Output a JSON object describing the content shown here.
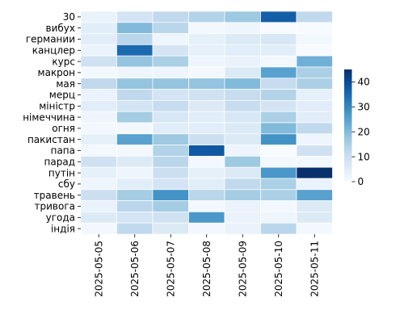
{
  "chart_data": {
    "type": "heatmap",
    "title": "",
    "xlabel": "",
    "ylabel": "",
    "x": [
      "2025-05-05",
      "2025-05-06",
      "2025-05-07",
      "2025-05-08",
      "2025-05-09",
      "2025-05-10",
      "2025-05-11"
    ],
    "y": [
      "30",
      "вибух",
      "германии",
      "канцлер",
      "курс",
      "макрон",
      "мая",
      "мерц",
      "міністр",
      "німеччина",
      "огня",
      "пакистан",
      "папа",
      "парад",
      "путін",
      "сбу",
      "травень",
      "тривога",
      "угода",
      "індія"
    ],
    "values": [
      [
        3,
        8,
        12,
        14,
        17,
        37,
        12
      ],
      [
        5,
        20,
        13,
        1,
        2,
        0,
        0
      ],
      [
        5,
        13,
        2,
        4,
        6,
        7,
        1
      ],
      [
        3,
        35,
        8,
        4,
        5,
        5,
        0
      ],
      [
        9,
        18,
        15,
        2,
        3,
        1,
        22
      ],
      [
        1,
        2,
        2,
        1,
        6,
        25,
        15
      ],
      [
        12,
        18,
        18,
        18,
        20,
        11,
        15
      ],
      [
        3,
        12,
        8,
        9,
        11,
        14,
        4
      ],
      [
        5,
        8,
        11,
        6,
        11,
        8,
        5
      ],
      [
        2,
        16,
        7,
        5,
        7,
        15,
        5
      ],
      [
        1,
        1,
        5,
        5,
        6,
        20,
        12
      ],
      [
        4,
        25,
        17,
        10,
        6,
        28,
        2
      ],
      [
        1,
        1,
        14,
        38,
        2,
        0,
        9
      ],
      [
        9,
        6,
        13,
        1,
        17,
        1,
        1
      ],
      [
        4,
        2,
        10,
        4,
        6,
        27,
        45
      ],
      [
        2,
        5,
        8,
        5,
        12,
        15,
        3
      ],
      [
        10,
        16,
        28,
        13,
        16,
        15,
        25
      ],
      [
        3,
        13,
        16,
        1,
        3,
        1,
        6
      ],
      [
        6,
        8,
        9,
        27,
        3,
        2,
        6
      ],
      [
        1,
        12,
        6,
        1,
        3,
        13,
        1
      ]
    ],
    "colorbar": {
      "min": 0,
      "max": 45,
      "ticks": [
        "0",
        "10",
        "20",
        "30",
        "40"
      ],
      "tick_values": [
        0,
        10,
        20,
        30,
        40
      ]
    },
    "colormap": [
      "#f7fbff",
      "#deebf7",
      "#c6dbef",
      "#9ecae1",
      "#6baed6",
      "#4292c6",
      "#2171b5",
      "#08519c",
      "#08306b"
    ],
    "grid_line_color": "#ffffff"
  }
}
